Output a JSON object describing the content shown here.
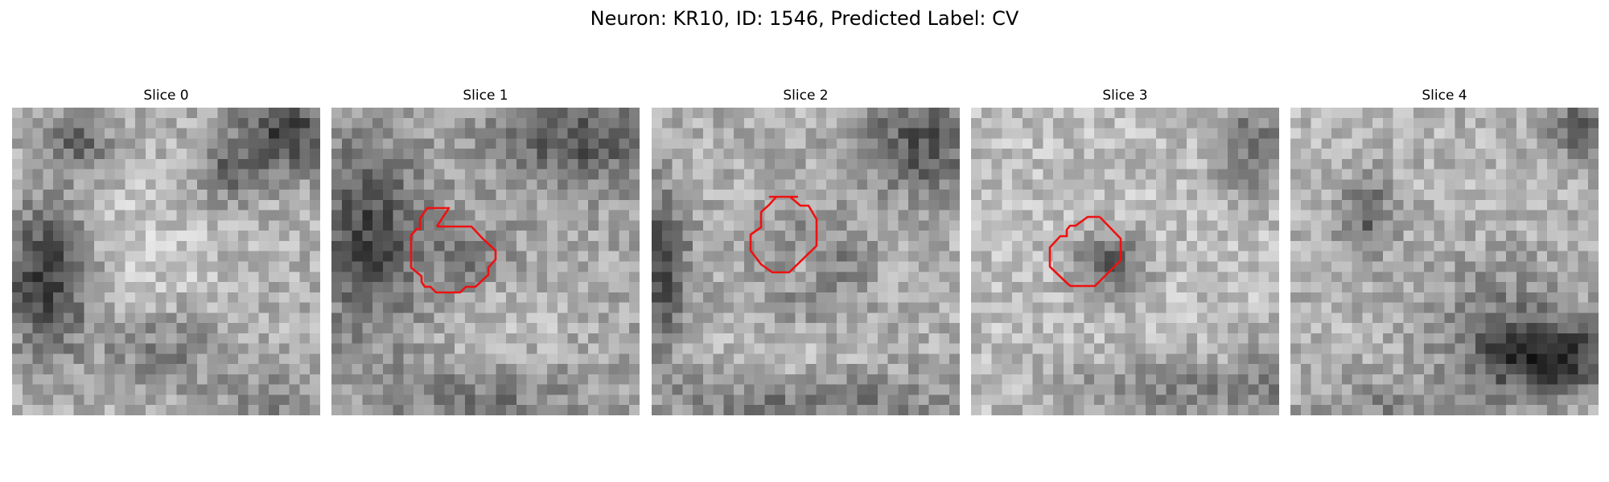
{
  "figure": {
    "title": "Neuron: KR10, ID: 1546, Predicted Label: CV"
  },
  "slices": [
    {
      "title": "Slice 0",
      "has_roi": false
    },
    {
      "title": "Slice 1",
      "has_roi": true
    },
    {
      "title": "Slice 2",
      "has_roi": true
    },
    {
      "title": "Slice 3",
      "has_roi": true
    },
    {
      "title": "Slice 4",
      "has_roi": false
    }
  ],
  "colors": {
    "roi_outline": "#ee1111",
    "colormap": "gray"
  }
}
